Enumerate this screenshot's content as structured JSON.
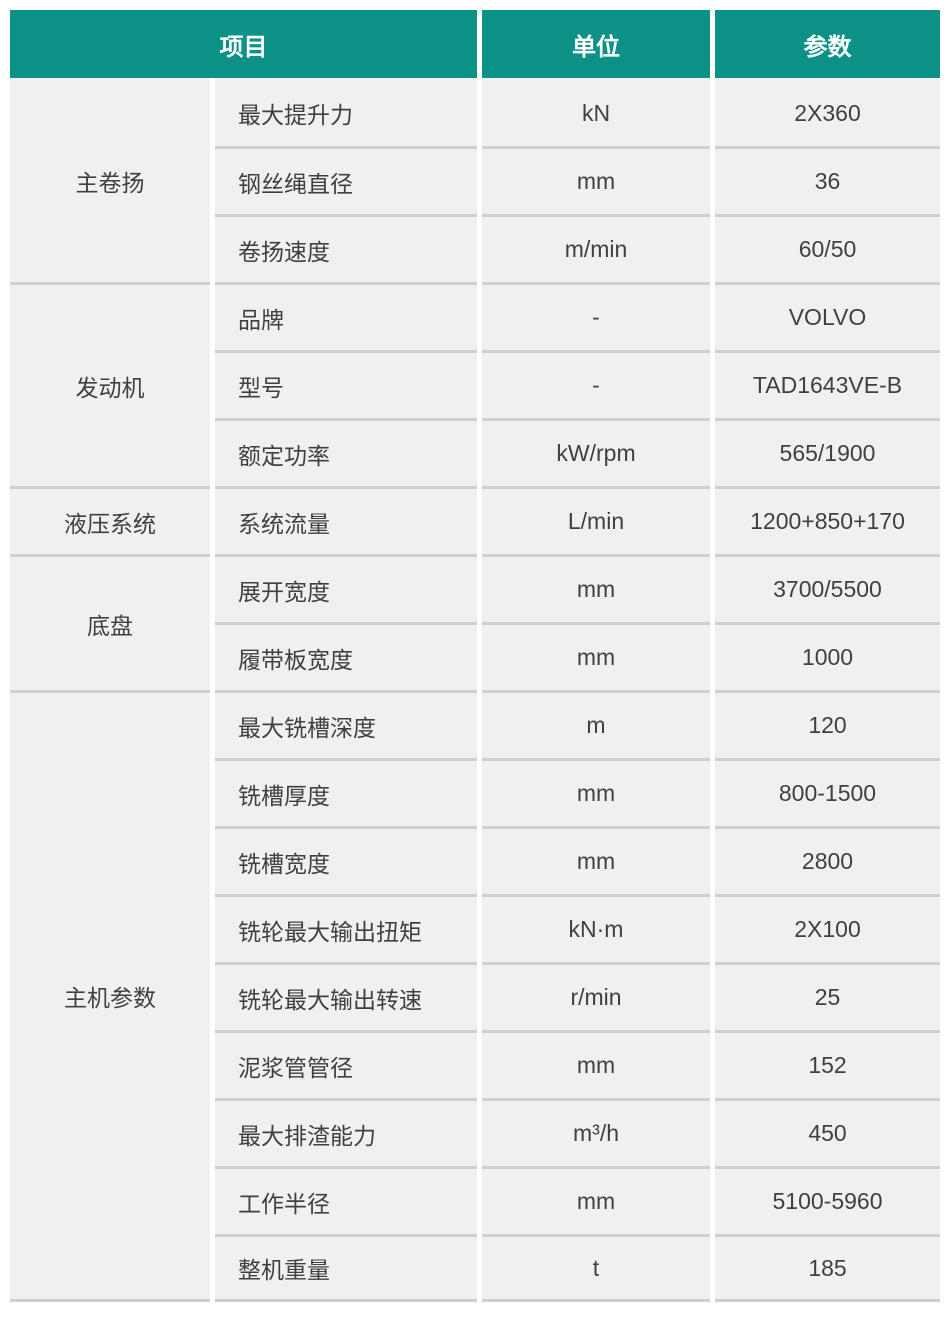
{
  "table": {
    "accent_color": "#0c9187",
    "row_bg_color": "#f0f0ee",
    "divider_color": "#ccd0d0",
    "text_color": "#3f4040",
    "header_text_color": "#ffffff",
    "header": {
      "item": "项目",
      "unit": "单位",
      "param": "参数"
    },
    "groups": [
      {
        "name": "主卷扬",
        "rows": [
          {
            "item": "最大提升力",
            "unit": "kN",
            "param": "2X360"
          },
          {
            "item": "钢丝绳直径",
            "unit": "mm",
            "param": "36"
          },
          {
            "item": "卷扬速度",
            "unit": "m/min",
            "param": "60/50"
          }
        ]
      },
      {
        "name": "发动机",
        "rows": [
          {
            "item": "品牌",
            "unit": "-",
            "param": "VOLVO"
          },
          {
            "item": "型号",
            "unit": "-",
            "param": "TAD1643VE-B"
          },
          {
            "item": "额定功率",
            "unit": "kW/rpm",
            "param": "565/1900"
          }
        ]
      },
      {
        "name": "液压系统",
        "rows": [
          {
            "item": "系统流量",
            "unit": "L/min",
            "param": "1200+850+170"
          }
        ]
      },
      {
        "name": "底盘",
        "rows": [
          {
            "item": "展开宽度",
            "unit": "mm",
            "param": "3700/5500"
          },
          {
            "item": "履带板宽度",
            "unit": "mm",
            "param": "1000"
          }
        ]
      },
      {
        "name": "主机参数",
        "rows": [
          {
            "item": "最大铣槽深度",
            "unit": "m",
            "param": "120"
          },
          {
            "item": "铣槽厚度",
            "unit": "mm",
            "param": "800-1500"
          },
          {
            "item": "铣槽宽度",
            "unit": "mm",
            "param": "2800"
          },
          {
            "item": "铣轮最大输出扭矩",
            "unit": "kN·m",
            "param": "2X100"
          },
          {
            "item": "铣轮最大输出转速",
            "unit": "r/min",
            "param": "25"
          },
          {
            "item": "泥浆管管径",
            "unit": "mm",
            "param": "152"
          },
          {
            "item": "最大排渣能力",
            "unit": "m³/h",
            "param": "450"
          },
          {
            "item": "工作半径",
            "unit": "mm",
            "param": "5100-5960"
          },
          {
            "item": "整机重量",
            "unit": "t",
            "param": "185"
          }
        ]
      }
    ]
  }
}
